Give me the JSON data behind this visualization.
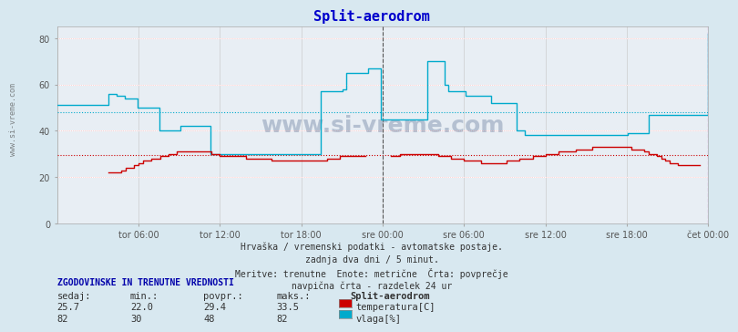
{
  "title": "Split-aerodrom",
  "title_color": "#0000cc",
  "bg_color": "#d8e8f0",
  "plot_bg_color": "#e8eef4",
  "grid_color_major": "#ffffff",
  "grid_color_minor": "#cccccc",
  "xlabel_color": "#555555",
  "ylabel_color": "#555555",
  "ylim": [
    0,
    85
  ],
  "yticks": [
    0,
    20,
    40,
    60,
    80
  ],
  "xtick_labels": [
    "tor 06:00",
    "tor 12:00",
    "tor 18:00",
    "sre 00:00",
    "sre 06:00",
    "sre 12:00",
    "sre 18:00",
    "čet 00:00"
  ],
  "avg_temp": 29.4,
  "avg_vlaga": 48,
  "temp_color": "#cc0000",
  "vlaga_color": "#00aacc",
  "avg_temp_color": "#cc0000",
  "avg_vlaga_color": "#00aacc",
  "vline_color": "#333333",
  "vline_end_color": "#cc00cc",
  "watermark": "www.si-vreme.com",
  "footnote1": "Hrvaška / vremenski podatki - avtomatske postaje.",
  "footnote2": "zadnja dva dni / 5 minut.",
  "footnote3": "Meritve: trenutne  Enote: metrične  Črta: povprečje",
  "footnote4": "navpična črta - razdelek 24 ur",
  "stat_header": "ZGODOVINSKE IN TRENUTNE VREDNOSTI",
  "col_sedaj": "sedaj:",
  "col_min": "min.:",
  "col_povpr": "povpr.:",
  "col_maks": "maks.:",
  "station": "Split-aerodrom",
  "temp_sedaj": 25.7,
  "temp_min": 22.0,
  "temp_povpr": 29.4,
  "temp_maks": 33.5,
  "vlaga_sedaj": 82,
  "vlaga_min": 30,
  "vlaga_povpr": 48,
  "vlaga_maks": 82,
  "temp_data": [
    0,
    0,
    0,
    0,
    0,
    0,
    0,
    0,
    0,
    0,
    0,
    0,
    22,
    22,
    22,
    23,
    24,
    24,
    25,
    26,
    27,
    27,
    28,
    28,
    29,
    29,
    30,
    30,
    31,
    31,
    31,
    31,
    31,
    31,
    31,
    31,
    30,
    30,
    29,
    29,
    29,
    29,
    29,
    29,
    28,
    28,
    28,
    28,
    28,
    28,
    27,
    27,
    27,
    27,
    27,
    27,
    27,
    27,
    27,
    27,
    27,
    27,
    27,
    28,
    28,
    28,
    29,
    29,
    29,
    29,
    29,
    29,
    0,
    0,
    0,
    0,
    0,
    0,
    29,
    29,
    30,
    30,
    30,
    30,
    30,
    30,
    30,
    30,
    30,
    29,
    29,
    29,
    28,
    28,
    28,
    27,
    27,
    27,
    27,
    26,
    26,
    26,
    26,
    26,
    26,
    27,
    27,
    27,
    28,
    28,
    28,
    29,
    29,
    29,
    30,
    30,
    30,
    31,
    31,
    31,
    31,
    32,
    32,
    32,
    32,
    33,
    33,
    33,
    33,
    33,
    33,
    33,
    33,
    33,
    32,
    32,
    32,
    31,
    30,
    30,
    29,
    28,
    27,
    26,
    26,
    25,
    25,
    25,
    25,
    25,
    0,
    0,
    26
  ],
  "vlaga_data": [
    51,
    51,
    51,
    51,
    51,
    51,
    51,
    51,
    51,
    51,
    51,
    51,
    56,
    56,
    55,
    55,
    54,
    54,
    54,
    50,
    50,
    50,
    50,
    50,
    40,
    40,
    40,
    40,
    40,
    42,
    42,
    42,
    42,
    42,
    42,
    42,
    30,
    30,
    30,
    30,
    30,
    30,
    30,
    30,
    30,
    30,
    30,
    30,
    30,
    30,
    30,
    30,
    30,
    30,
    30,
    30,
    30,
    30,
    30,
    30,
    30,
    30,
    57,
    57,
    57,
    57,
    57,
    58,
    65,
    65,
    65,
    65,
    65,
    67,
    67,
    67,
    45,
    45,
    45,
    45,
    45,
    45,
    45,
    45,
    45,
    45,
    45,
    70,
    70,
    70,
    70,
    60,
    57,
    57,
    57,
    57,
    55,
    55,
    55,
    55,
    55,
    55,
    52,
    52,
    52,
    52,
    52,
    52,
    40,
    40,
    38,
    38,
    38,
    38,
    38,
    38,
    38,
    38,
    38,
    38,
    38,
    38,
    38,
    38,
    38,
    38,
    38,
    38,
    38,
    38,
    38,
    38,
    38,
    38,
    39,
    39,
    39,
    39,
    39,
    47,
    47,
    47,
    47,
    47,
    47,
    47,
    47,
    47,
    47,
    47,
    47,
    47,
    47,
    82
  ]
}
